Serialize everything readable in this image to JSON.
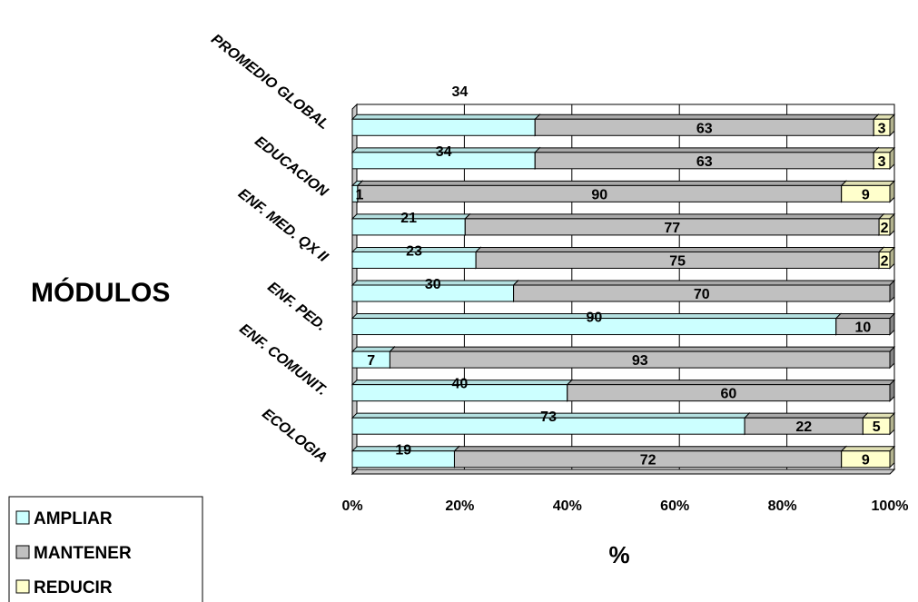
{
  "chart_data": {
    "type": "bar",
    "orientation": "horizontal",
    "stacked": "percent",
    "category_labels": [
      "PROMEDIO GLOBAL",
      "EDUCACION",
      "ENF. MED. QX II",
      "ENF. PED.",
      "ENF. COMUNIT.",
      "ECOLOGIA"
    ],
    "bars": [
      {
        "values": [
          34,
          63,
          3
        ],
        "labels": [
          "",
          "63",
          "3"
        ]
      },
      {
        "values": [
          34,
          63,
          3
        ],
        "labels": [
          "34",
          "63",
          "3"
        ]
      },
      {
        "values": [
          1,
          90,
          9
        ],
        "labels": [
          "1",
          "90",
          "9"
        ]
      },
      {
        "values": [
          21,
          77,
          2
        ],
        "labels": [
          "21",
          "77",
          "2"
        ]
      },
      {
        "values": [
          23,
          75,
          2
        ],
        "labels": [
          "23",
          "75",
          "2"
        ]
      },
      {
        "values": [
          30,
          70,
          0
        ],
        "labels": [
          "30",
          "70",
          ""
        ]
      },
      {
        "values": [
          90,
          10,
          0
        ],
        "labels": [
          "90",
          "10",
          ""
        ]
      },
      {
        "values": [
          7,
          93,
          0
        ],
        "labels": [
          "7",
          "93",
          ""
        ]
      },
      {
        "values": [
          40,
          60,
          0
        ],
        "labels": [
          "40",
          "60",
          ""
        ]
      },
      {
        "values": [
          73,
          22,
          5
        ],
        "labels": [
          "73",
          "22",
          "5"
        ]
      },
      {
        "values": [
          19,
          72,
          9
        ],
        "labels": [
          "19",
          "72",
          "9"
        ]
      }
    ],
    "extra_label": "34",
    "series": [
      {
        "name": "AMPLIAR",
        "color": "#ccffff"
      },
      {
        "name": "MANTENER",
        "color": "#c0c0c0"
      },
      {
        "name": "REDUCIR",
        "color": "#ffffcc"
      }
    ],
    "xticks": [
      "0%",
      "20%",
      "40%",
      "60%",
      "80%",
      "100%"
    ],
    "xlim": [
      0,
      100
    ],
    "ylabel": "MÓDULOS",
    "xlabel": "%",
    "legend_position": "bottom-left",
    "grid": true
  }
}
